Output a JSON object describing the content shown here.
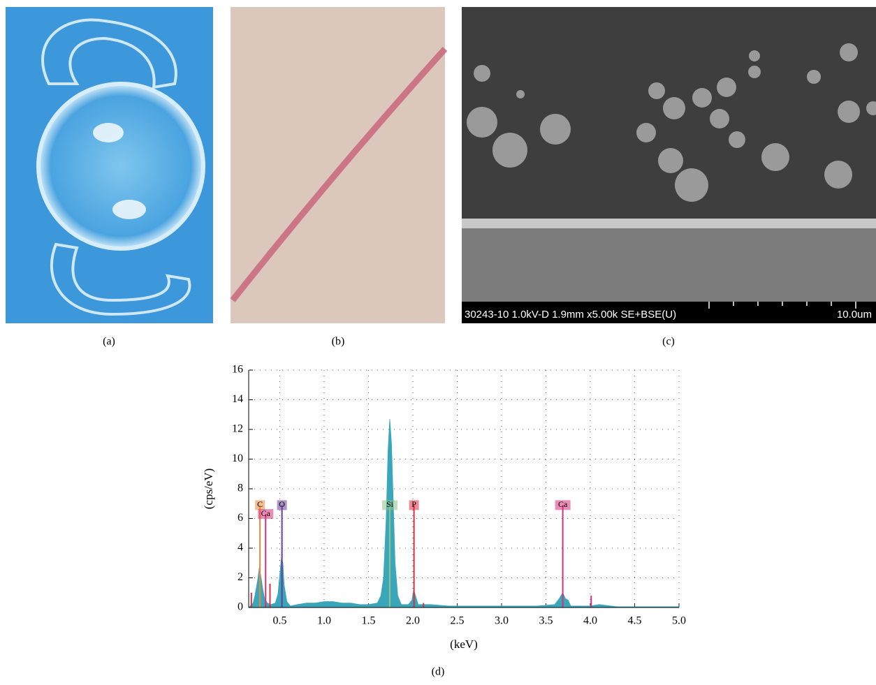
{
  "captions": [
    "(a)",
    "(b)",
    "(c)",
    "(d)"
  ],
  "sem_info": "30243-10 1.0kV-D 1.9mm x5.00k SE+BSE(U)",
  "scale_bar": "10.0um",
  "chart_data": {
    "type": "area",
    "x_label": "(keV)",
    "y_label": "(cps/eV)",
    "color": "#3aa6b9",
    "x": [
      0.15,
      0.2,
      0.22,
      0.25,
      0.27,
      0.29,
      0.31,
      0.33,
      0.36,
      0.4,
      0.45,
      0.48,
      0.5,
      0.52,
      0.535,
      0.55,
      0.58,
      0.62,
      0.7,
      0.8,
      0.9,
      1.0,
      1.1,
      1.2,
      1.3,
      1.4,
      1.5,
      1.6,
      1.64,
      1.67,
      1.7,
      1.72,
      1.74,
      1.76,
      1.78,
      1.8,
      1.83,
      1.87,
      1.95,
      1.99,
      2.01,
      2.03,
      2.06,
      2.2,
      2.4,
      2.7,
      3.0,
      3.4,
      3.6,
      3.65,
      3.69,
      3.72,
      3.75,
      3.78,
      4.0,
      4.1,
      4.3,
      5.0
    ],
    "values": [
      0,
      0.3,
      0.8,
      1.8,
      2.7,
      2.0,
      1.2,
      0.6,
      0.3,
      0.2,
      0.3,
      0.9,
      2.2,
      3.4,
      3.0,
      1.5,
      0.4,
      0.1,
      0.2,
      0.3,
      0.3,
      0.4,
      0.4,
      0.3,
      0.3,
      0.2,
      0.2,
      0.3,
      0.8,
      2.0,
      6.0,
      10.5,
      12.7,
      11.0,
      7.0,
      3.0,
      0.8,
      0.2,
      0.2,
      0.5,
      1.2,
      0.8,
      0.2,
      0.2,
      0.1,
      0.1,
      0.1,
      0.1,
      0.2,
      0.6,
      1.0,
      0.6,
      0.5,
      0.1,
      0.1,
      0.2,
      0.05,
      0.05
    ],
    "xlim": [
      0.15,
      5.0
    ],
    "ylim": [
      0,
      16
    ],
    "xticks": [
      0.5,
      {
        "value": 1,
        "label": "1.0"
      },
      1.5,
      {
        "value": 2,
        "label": "2.0"
      },
      2.5,
      {
        "value": 3,
        "label": "3.0"
      },
      3.5,
      {
        "value": 4,
        "label": "4.0"
      },
      4.5,
      {
        "value": 5,
        "label": "5.0"
      }
    ],
    "yticks": [
      0,
      2,
      4,
      6,
      8,
      10,
      12,
      14,
      16
    ],
    "grid": true,
    "element_lines": {
      "labels": [
        "C",
        "Ca",
        "O",
        "Si",
        "P",
        "Ca",
        null,
        null,
        null,
        null
      ],
      "x": [
        0.277,
        0.341,
        0.525,
        1.74,
        2.013,
        3.69,
        0.18,
        0.39,
        2.12,
        4.01
      ],
      "values": [
        6.9,
        6.3,
        6.9,
        6.9,
        6.9,
        6.9,
        1.0,
        1.6,
        0.3,
        0.8
      ],
      "colors": [
        "#e8883a",
        "#d8307a",
        "#6a3d9a",
        "#8fc08a",
        "#d83040",
        "#d8307a",
        "#d83040",
        "#d83040",
        "#d83040",
        "#d8307a"
      ]
    }
  }
}
